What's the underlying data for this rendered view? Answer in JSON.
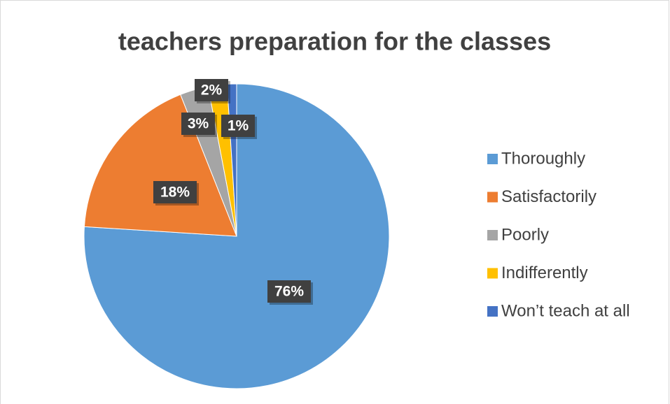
{
  "chart_data": {
    "type": "pie",
    "title": "teachers preparation for the classes",
    "categories": [
      "Thoroughly",
      "Satisfactorily",
      "Poorly",
      "Indifferently",
      "Won’t teach at all"
    ],
    "values": [
      76,
      18,
      3,
      2,
      1
    ],
    "value_labels": [
      "76%",
      "18%",
      "3%",
      "2%",
      "1%"
    ],
    "colors": [
      "#5b9bd5",
      "#ed7d31",
      "#a5a5a5",
      "#ffc000",
      "#4472c4"
    ],
    "legend": "right"
  }
}
